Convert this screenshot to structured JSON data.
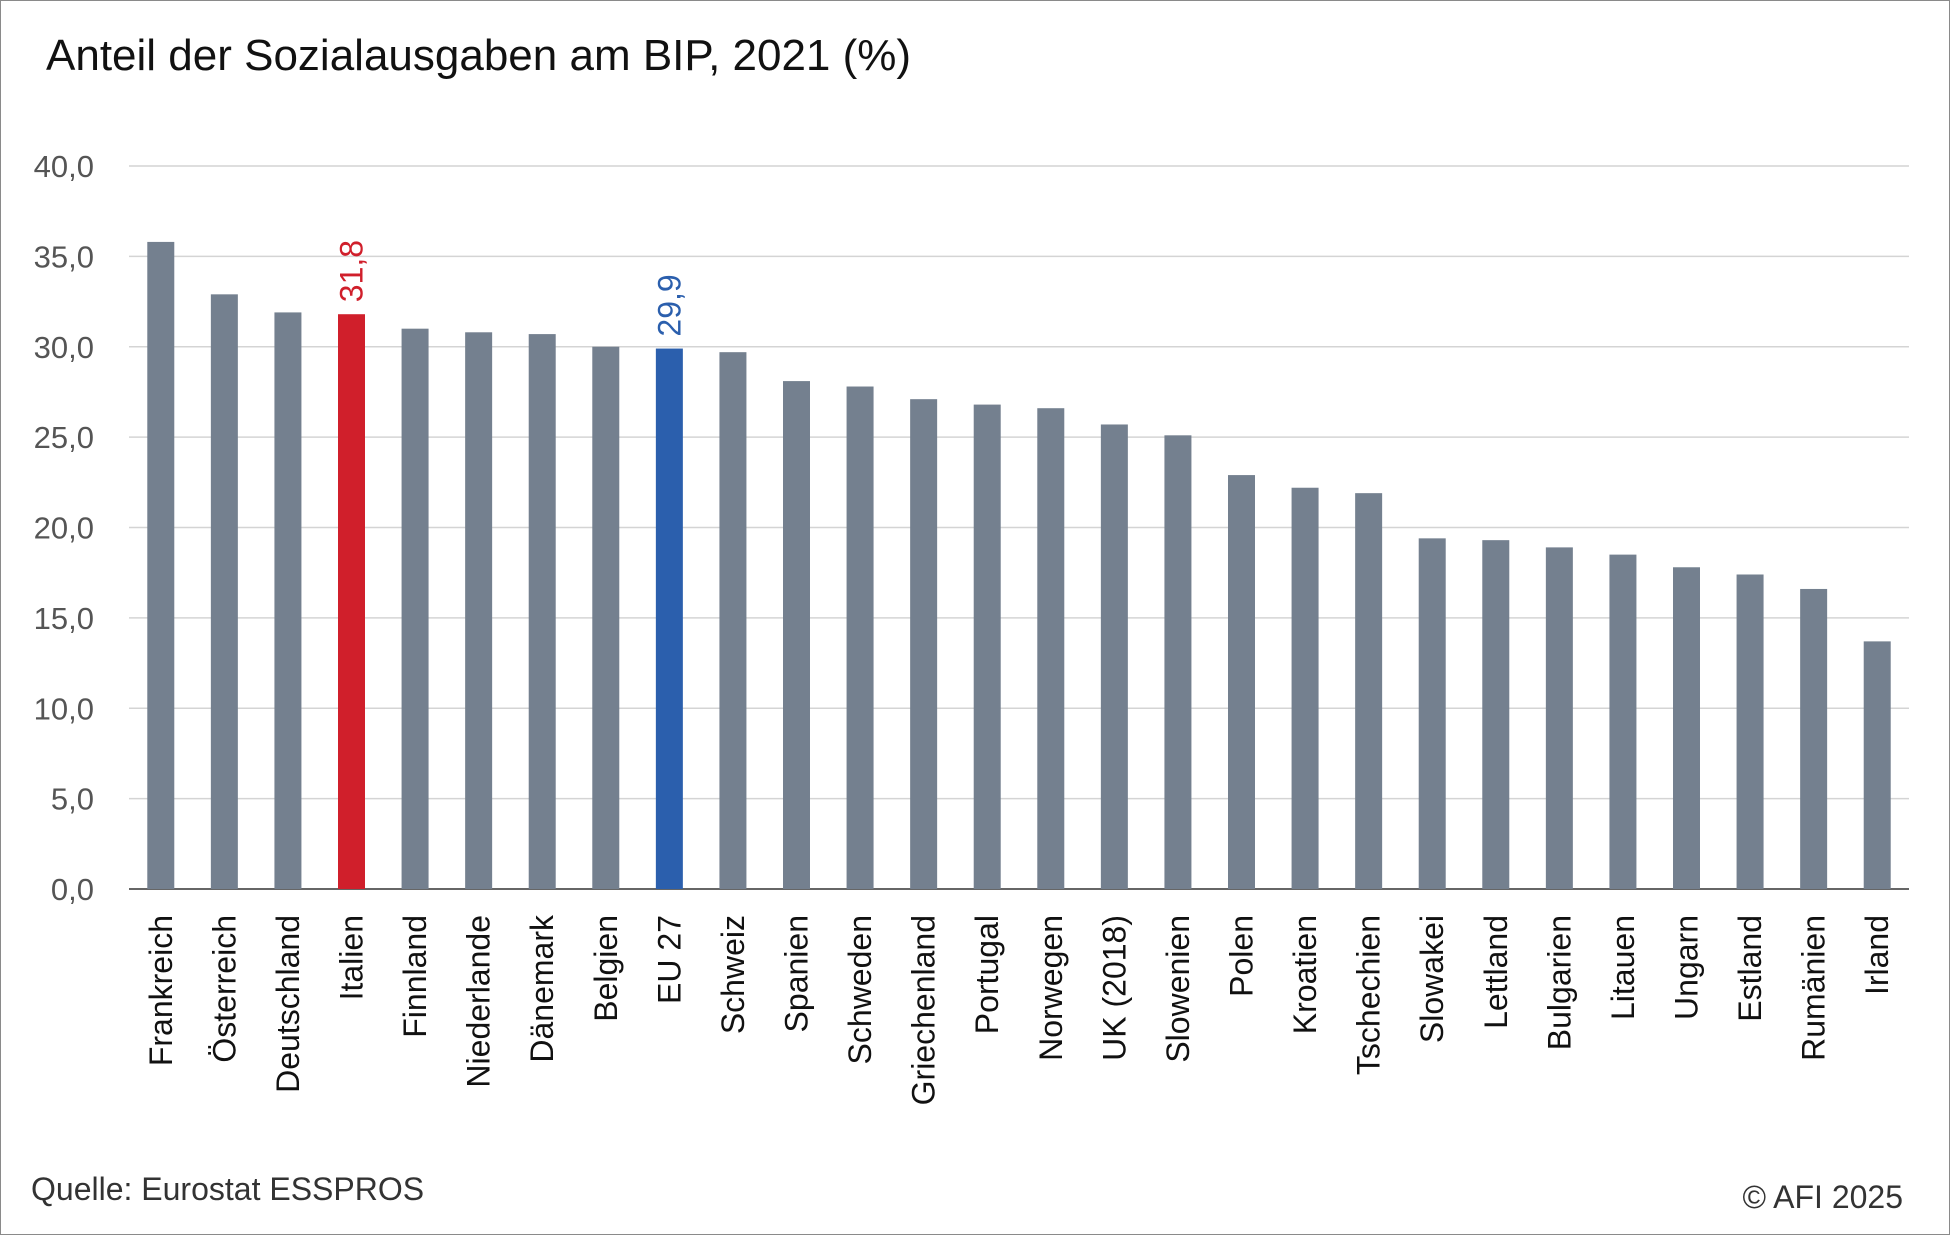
{
  "title": "Anteil der Sozialausgaben am BIP, 2021 (%)",
  "source": "Quelle: Eurostat ESSPROS",
  "copyright": "© AFI 2025",
  "colors": {
    "default": "#74808f",
    "highlight_red": "#d01f2b",
    "highlight_blue": "#2b5fad",
    "grid": "#d4d4d4",
    "axis": "#666666"
  },
  "chart_data": {
    "type": "bar",
    "title": "Anteil der Sozialausgaben am BIP, 2021 (%)",
    "xlabel": "",
    "ylabel": "",
    "ylim": [
      0,
      40
    ],
    "yticks": [
      "0,0",
      "5,0",
      "10,0",
      "15,0",
      "20,0",
      "25,0",
      "30,0",
      "35,0",
      "40,0"
    ],
    "ytick_values": [
      0,
      5,
      10,
      15,
      20,
      25,
      30,
      35,
      40
    ],
    "grid": true,
    "categories": [
      "Frankreich",
      "Österreich",
      "Deutschland",
      "Italien",
      "Finnland",
      "Niederlande",
      "Dänemark",
      "Belgien",
      "EU 27",
      "Schweiz",
      "Spanien",
      "Schweden",
      "Griechenland",
      "Portugal",
      "Norwegen",
      "UK (2018)",
      "Slowenien",
      "Polen",
      "Kroatien",
      "Tschechien",
      "Slowakei",
      "Lettland",
      "Bulgarien",
      "Litauen",
      "Ungarn",
      "Estland",
      "Rumänien",
      "Irland"
    ],
    "values": [
      35.8,
      32.9,
      31.9,
      31.8,
      31.0,
      30.8,
      30.7,
      30.0,
      29.9,
      29.7,
      28.1,
      27.8,
      27.1,
      26.8,
      26.6,
      25.7,
      25.1,
      22.9,
      22.2,
      21.9,
      19.4,
      19.3,
      18.9,
      18.5,
      17.8,
      17.4,
      16.6,
      13.7
    ],
    "highlights": [
      {
        "category": "Italien",
        "color": "#d01f2b",
        "label": "31,8"
      },
      {
        "category": "EU 27",
        "color": "#2b5fad",
        "label": "29,9"
      }
    ]
  }
}
